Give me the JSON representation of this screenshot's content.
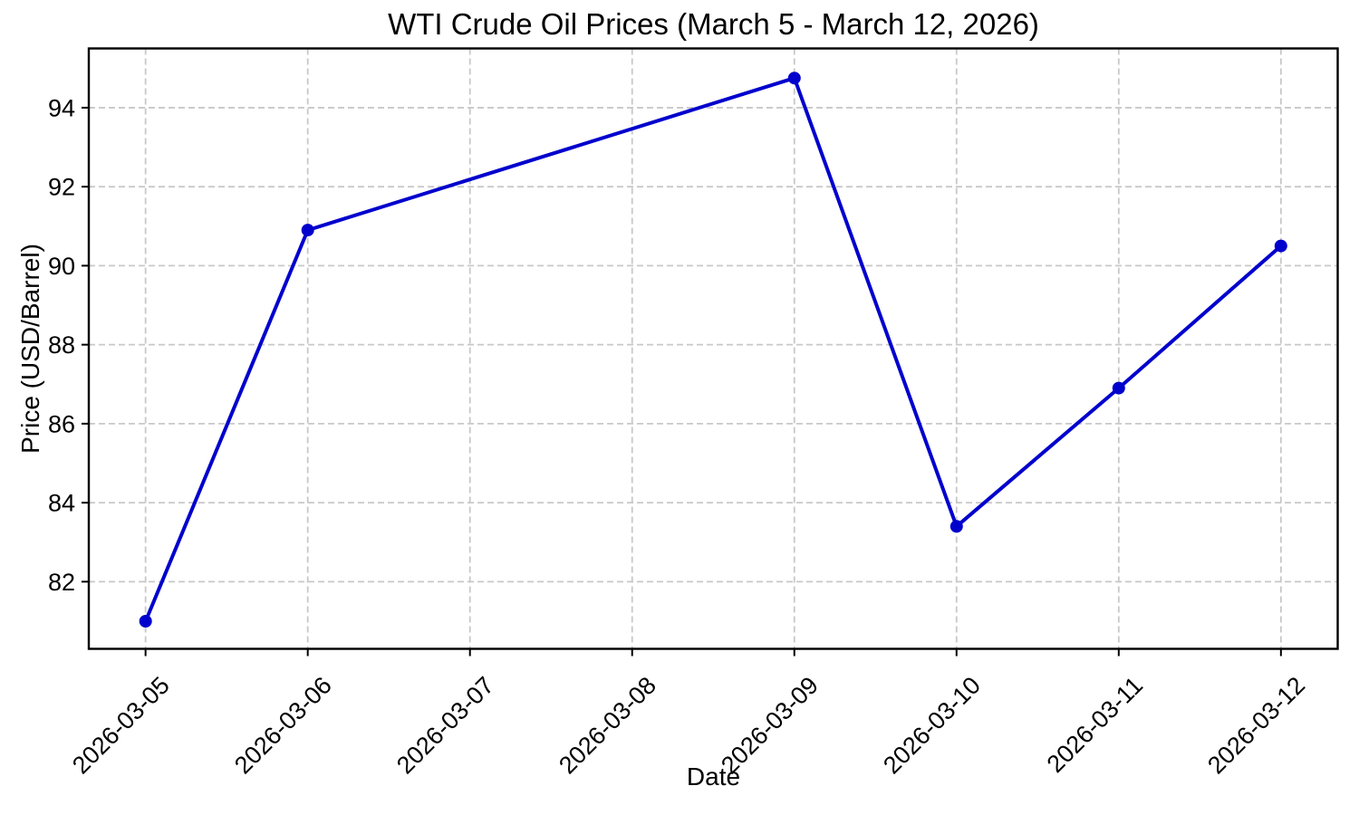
{
  "chart_data": {
    "type": "line",
    "title": "WTI Crude Oil Prices (March 5 - March 12, 2026)",
    "xlabel": "Date",
    "ylabel": "Price (USD/Barrel)",
    "categories": [
      "2026-03-05",
      "2026-03-06",
      "2026-03-07",
      "2026-03-08",
      "2026-03-09",
      "2026-03-10",
      "2026-03-11",
      "2026-03-12"
    ],
    "x_tick_rotation": 45,
    "yticks": [
      82,
      84,
      86,
      88,
      90,
      92,
      94
    ],
    "ylim": [
      80.3,
      95.5
    ],
    "grid": true,
    "grid_style": "dashed",
    "legend_position": "none",
    "series": [
      {
        "color": "#0000cd",
        "marker": "circle",
        "points": [
          {
            "date": "2026-03-05",
            "price": 81.0
          },
          {
            "date": "2026-03-06",
            "price": 90.9
          },
          {
            "date": "2026-03-09",
            "price": 94.75
          },
          {
            "date": "2026-03-10",
            "price": 83.4
          },
          {
            "date": "2026-03-11",
            "price": 86.9
          },
          {
            "date": "2026-03-12",
            "price": 90.5
          }
        ]
      }
    ]
  },
  "colors": {
    "line": "#0000cd",
    "grid": "#c8c8c8",
    "axis": "#000000",
    "text": "#000000",
    "background": "#ffffff"
  }
}
